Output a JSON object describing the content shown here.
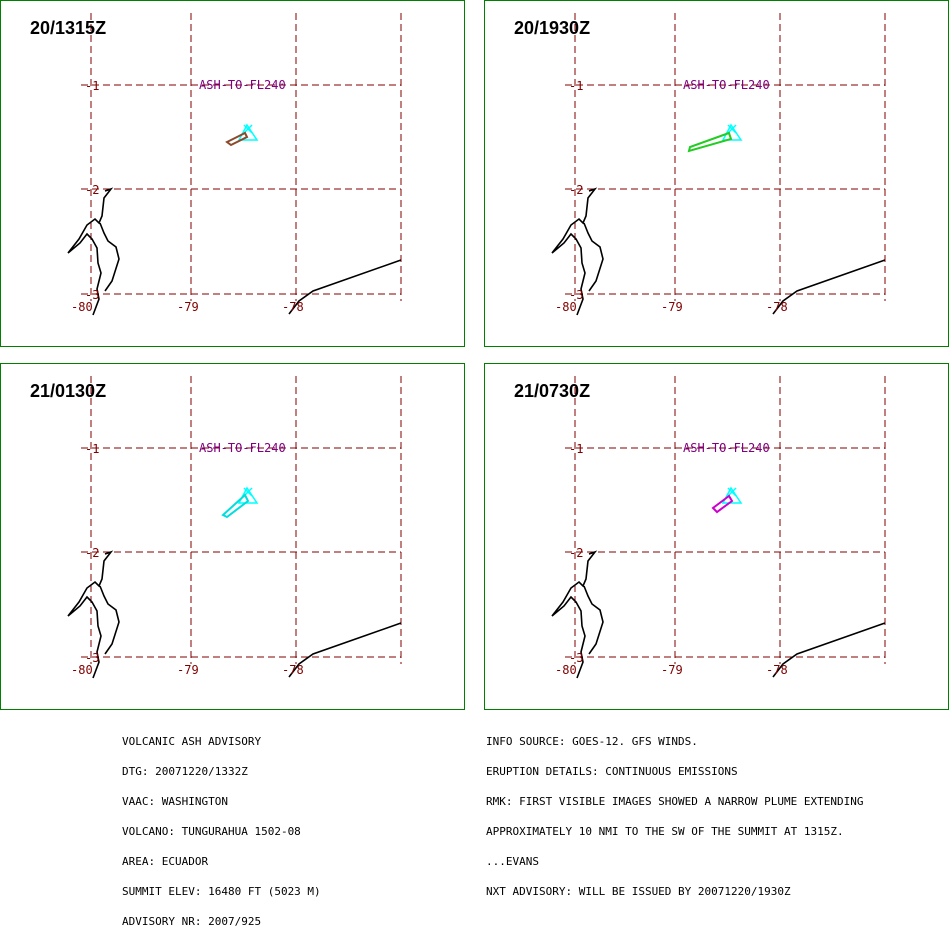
{
  "panels": [
    {
      "time": "20/1315Z",
      "plume_color": "#8b4a2b"
    },
    {
      "time": "20/1930Z",
      "plume_color": "#22cc22"
    },
    {
      "time": "21/0130Z",
      "plume_color": "#00dddd"
    },
    {
      "time": "21/0730Z",
      "plume_color": "#cc00cc"
    }
  ],
  "map": {
    "ash_label": "ASH-TO-FL240",
    "lat_labels": [
      "-1",
      "-2",
      "-3"
    ],
    "lon_labels": [
      "-80",
      "-79",
      "-78"
    ],
    "grid_color": "#800000",
    "ash_label_color": "#800080",
    "volcano_color": "#00ffff"
  },
  "advisory_left": [
    "VOLCANIC ASH ADVISORY",
    "DTG: 20071220/1332Z",
    "VAAC: WASHINGTON",
    "VOLCANO: TUNGURAHUA 1502-08",
    "AREA: ECUADOR",
    "SUMMIT ELEV: 16480 FT (5023 M)",
    "ADVISORY NR: 2007/925"
  ],
  "advisory_right": [
    "INFO SOURCE: GOES-12. GFS WINDS.",
    "ERUPTION DETAILS: CONTINUOUS EMISSIONS",
    "RMK: FIRST VISIBLE IMAGES SHOWED A NARROW PLUME EXTENDING",
    "APPROXIMATELY 10 NMI TO THE SW OF THE SUMMIT AT 1315Z.",
    "...EVANS",
    "NXT ADVISORY: WILL BE ISSUED BY 20071220/1930Z"
  ]
}
